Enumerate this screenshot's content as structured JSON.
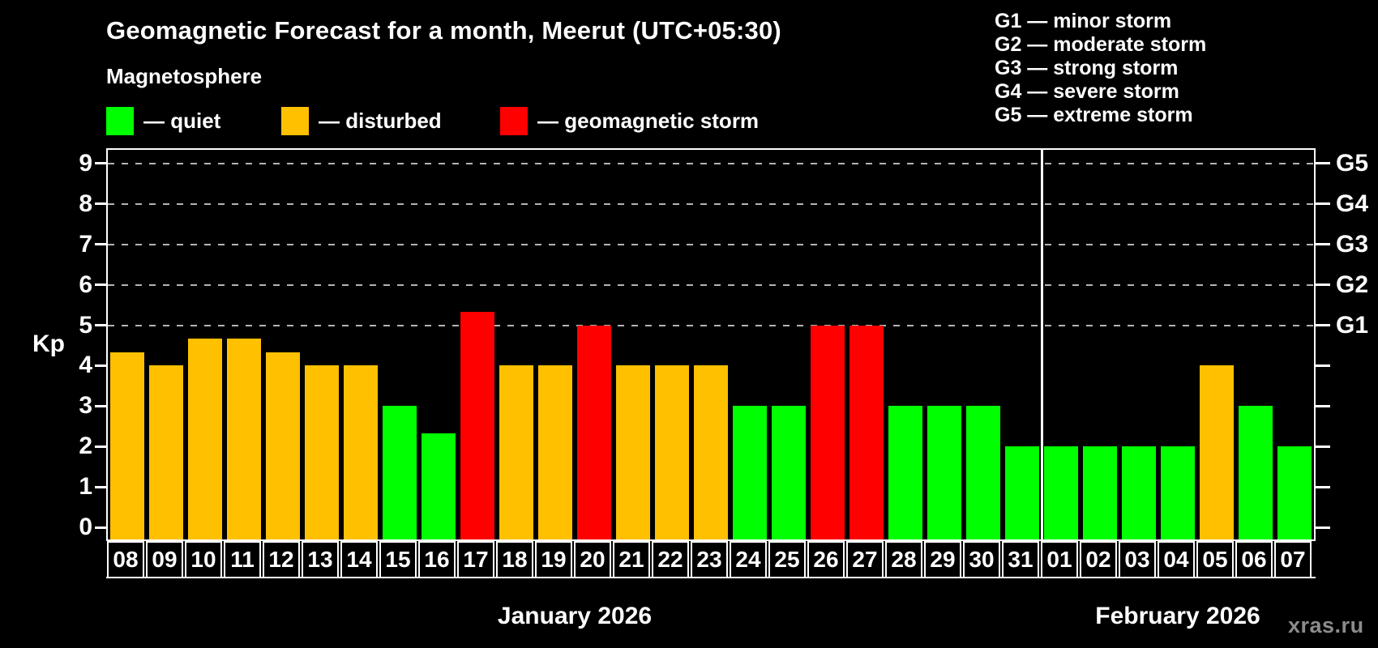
{
  "page": {
    "title": "Geomagnetic Forecast for a month, Meerut (UTC+05:30)",
    "subtitle": "Magnetosphere",
    "watermark": "xras.ru"
  },
  "legend": {
    "items": [
      {
        "key": "quiet",
        "label": "— quiet",
        "color": "#00ff00"
      },
      {
        "key": "disturbed",
        "label": "— disturbed",
        "color": "#ffc000"
      },
      {
        "key": "storm",
        "label": "— geomagnetic storm",
        "color": "#ff0000"
      }
    ]
  },
  "g_legend": {
    "items": [
      "G1 — minor storm",
      "G2 — moderate storm",
      "G3 — strong storm",
      "G4 — severe storm",
      "G5 — extreme storm"
    ]
  },
  "chart_data": {
    "type": "bar",
    "title": "Geomagnetic Forecast for a month, Meerut (UTC+05:30)",
    "subtitle": "Magnetosphere",
    "xlabel": "",
    "ylabel": "Kp",
    "ylim": [
      0,
      9
    ],
    "y_ticks": [
      0,
      1,
      2,
      3,
      4,
      5,
      6,
      7,
      8,
      9
    ],
    "grid": "dashed horizontal lines at Kp 5-9 only",
    "grid_kp_levels": [
      5,
      6,
      7,
      8,
      9
    ],
    "right_axis_labels": [
      {
        "label": "G1",
        "kp": 5
      },
      {
        "label": "G2",
        "kp": 6
      },
      {
        "label": "G3",
        "kp": 7
      },
      {
        "label": "G4",
        "kp": 8
      },
      {
        "label": "G5",
        "kp": 9
      }
    ],
    "categories": [
      "08",
      "09",
      "10",
      "11",
      "12",
      "13",
      "14",
      "15",
      "16",
      "17",
      "18",
      "19",
      "20",
      "21",
      "22",
      "23",
      "24",
      "25",
      "26",
      "27",
      "28",
      "29",
      "30",
      "31",
      "01",
      "02",
      "03",
      "04",
      "05",
      "06",
      "07"
    ],
    "series": [
      {
        "name": "Kp forecast",
        "values": [
          4.33,
          4,
          4.67,
          4.67,
          4.33,
          4,
          4,
          3,
          2.33,
          5.33,
          4,
          4,
          5,
          4,
          4,
          4,
          3,
          3,
          5,
          5,
          3,
          3,
          3,
          2,
          2,
          2,
          2,
          2,
          4,
          3,
          2
        ]
      }
    ],
    "statuses": [
      "disturbed",
      "disturbed",
      "disturbed",
      "disturbed",
      "disturbed",
      "disturbed",
      "disturbed",
      "quiet",
      "quiet",
      "storm",
      "disturbed",
      "disturbed",
      "storm",
      "disturbed",
      "disturbed",
      "disturbed",
      "quiet",
      "quiet",
      "storm",
      "storm",
      "quiet",
      "quiet",
      "quiet",
      "quiet",
      "quiet",
      "quiet",
      "quiet",
      "quiet",
      "disturbed",
      "quiet",
      "quiet"
    ],
    "status_colors": {
      "quiet": "#00ff00",
      "disturbed": "#ffc000",
      "storm": "#ff0000"
    },
    "months": [
      {
        "label": "January 2026",
        "start": 0,
        "count": 24
      },
      {
        "label": "February 2026",
        "start": 24,
        "count": 7
      }
    ],
    "legend_position": "top-left",
    "background": "#000000"
  }
}
